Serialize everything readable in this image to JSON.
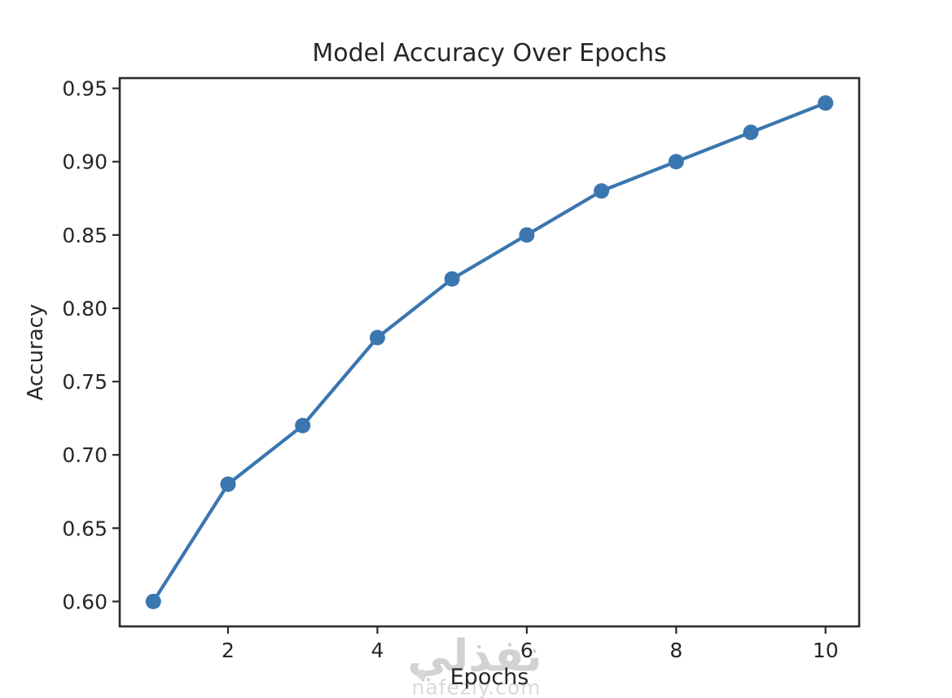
{
  "chart_data": {
    "type": "line",
    "title": "Model Accuracy Over Epochs",
    "xlabel": "Epochs",
    "ylabel": "Accuracy",
    "x": [
      1,
      2,
      3,
      4,
      5,
      6,
      7,
      8,
      9,
      10
    ],
    "series": [
      {
        "name": "accuracy",
        "values": [
          0.6,
          0.68,
          0.72,
          0.78,
          0.82,
          0.85,
          0.88,
          0.9,
          0.92,
          0.94
        ]
      }
    ],
    "xticks": [
      2,
      4,
      6,
      8,
      10
    ],
    "xtick_labels": [
      "2",
      "4",
      "6",
      "8",
      "10"
    ],
    "yticks": [
      0.6,
      0.65,
      0.7,
      0.75,
      0.8,
      0.85,
      0.9,
      0.95
    ],
    "ytick_labels": [
      "0.60",
      "0.65",
      "0.70",
      "0.75",
      "0.80",
      "0.85",
      "0.90",
      "0.95"
    ],
    "xlim": [
      0.55,
      10.45
    ],
    "ylim": [
      0.583,
      0.957
    ],
    "grid": false,
    "legend": "none",
    "line_color": "#3a76af",
    "marker": "o",
    "axis_color": "#2b2b2b"
  },
  "watermark": {
    "logo_text": "نفذلي",
    "site_text": "nafezly.com",
    "color": "#d2d2d2"
  }
}
